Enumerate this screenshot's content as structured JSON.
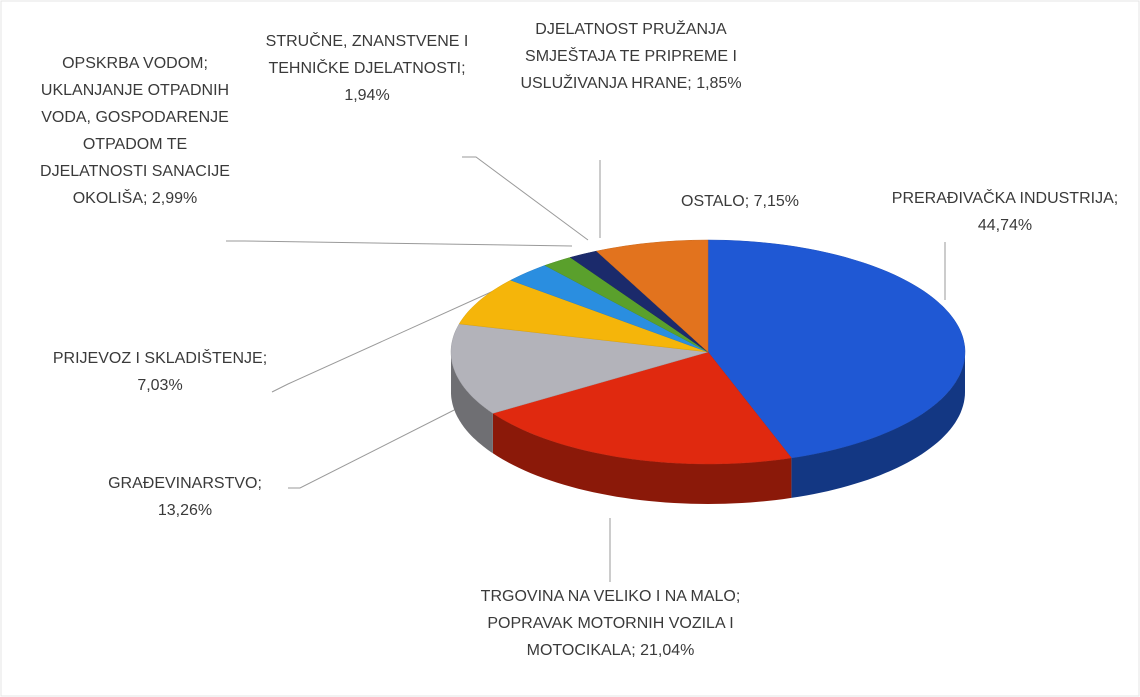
{
  "chart_data": {
    "type": "pie",
    "categories": [
      "PRERAĐIVAČKA INDUSTRIJA;",
      "TRGOVINA NA VELIKO I NA MALO; POPRAVAK MOTORNIH VOZILA I MOTOCIKALA;",
      "GRAĐEVINARSTVO;",
      "PRIJEVOZ I SKLADIŠTENJE;",
      "OPSKRBA VODOM; UKLANJANJE OTPADNIH VODA, GOSPODARENJE OTPADOM TE DJELATNOSTI SANACIJE OKOLIŠA;",
      "STRUČNE, ZNANSTVENE I TEHNIČKE DJELATNOSTI;",
      "DJELATNOST PRUŽANJA SMJEŠTAJA TE PRIPREME I USLUŽIVANJA HRANE;",
      "OSTALO;"
    ],
    "values": [
      44.74,
      21.04,
      13.26,
      7.03,
      2.99,
      1.94,
      1.85,
      7.15
    ],
    "value_labels": [
      "44,74%",
      "21,04%",
      "13,26%",
      "7,03%",
      "2,99%",
      "1,94%",
      "1,85%",
      "7,15%"
    ],
    "colors": [
      "#1f58d4",
      "#e0290f",
      "#b3b3ba",
      "#f5b50a",
      "#2a8ee0",
      "#5aa02c",
      "#1b2a6b",
      "#e2731e"
    ]
  }
}
